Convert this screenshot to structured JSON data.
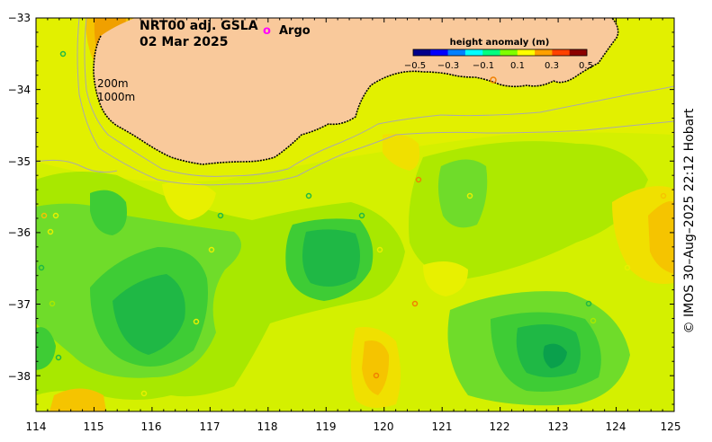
{
  "title": {
    "line1": "NRT00 adj. GSLA",
    "line2": "02 Mar 2025"
  },
  "argo_legend": {
    "symbol": "o",
    "label": "Argo",
    "color": "#ff00ff"
  },
  "colorbar": {
    "title": "height anomaly (m)",
    "tick_labels": [
      "−0.5",
      "−0.3",
      "−0.1",
      "0.1",
      "0.3",
      "0.5"
    ],
    "colors": [
      "#00008b",
      "#0000ff",
      "#0080ff",
      "#00ffff",
      "#00ff80",
      "#80ff00",
      "#ffff00",
      "#ffa000",
      "#ff4000",
      "#8b0000"
    ]
  },
  "isobaths": {
    "label_200": "200m",
    "label_1000": "1000m"
  },
  "axes": {
    "x_ticks": [
      "114",
      "115",
      "116",
      "117",
      "118",
      "119",
      "120",
      "121",
      "122",
      "123",
      "124",
      "125"
    ],
    "y_ticks": [
      "−33",
      "−34",
      "−35",
      "−36",
      "−37",
      "−38"
    ]
  },
  "side_label": "© IMOS 30–Aug–2025 22:12 Hobart",
  "colors": {
    "land": "#f9c99b",
    "sea_background": "#d4f000",
    "coastline": "#000000",
    "isobath": "#aaaaaa"
  }
}
